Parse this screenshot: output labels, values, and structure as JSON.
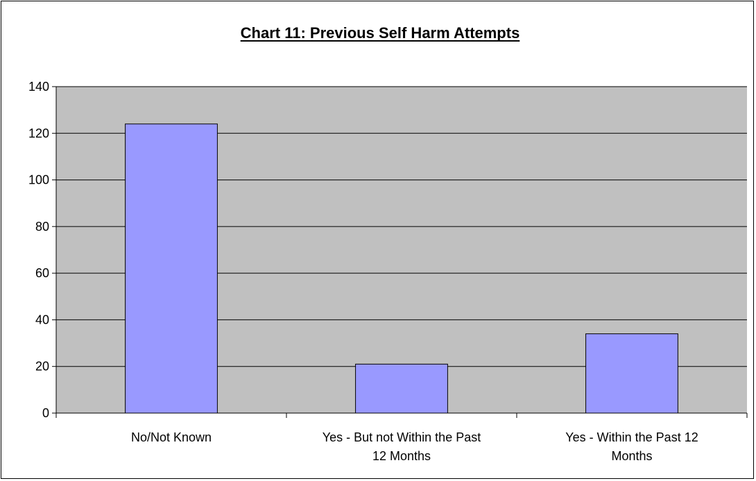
{
  "chart_data": {
    "type": "bar",
    "title": "Chart 11: Previous Self Harm Attempts",
    "xlabel": "",
    "ylabel": "",
    "categories": [
      [
        "No/Not Known"
      ],
      [
        "Yes - But not Within the Past",
        "12 Months"
      ],
      [
        "Yes - Within the Past 12",
        "Months"
      ]
    ],
    "values": [
      124,
      21,
      34
    ],
    "ylim": [
      0,
      140
    ],
    "yticks": [
      0,
      20,
      40,
      60,
      80,
      100,
      120,
      140
    ],
    "grid": true,
    "legend": "none",
    "colors": {
      "bar": "#9999ff",
      "plot_area": "#c0c0c0",
      "gridline": "#000000",
      "border": "#000000"
    }
  }
}
